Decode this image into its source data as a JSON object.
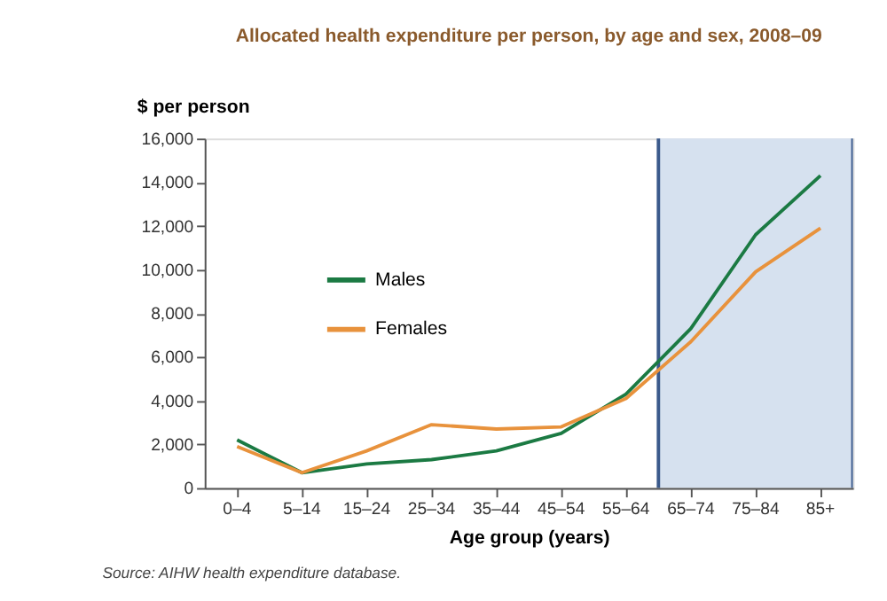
{
  "chart_data": {
    "type": "line",
    "title": "Allocated health expenditure per person, by age and sex, 2008–09",
    "xlabel": "Age group (years)",
    "ylabel": "$ per person",
    "categories": [
      "0–4",
      "5–14",
      "15–24",
      "25–34",
      "35–44",
      "45–54",
      "55–64",
      "65–74",
      "75–84",
      "85+"
    ],
    "series": [
      {
        "name": "Males",
        "color": "#1b7a43",
        "values": [
          2200,
          700,
          1100,
          1300,
          1700,
          2500,
          4300,
          7300,
          11600,
          14300
        ]
      },
      {
        "name": "Females",
        "color": "#e8923c",
        "values": [
          1900,
          700,
          1700,
          2900,
          2700,
          2800,
          4100,
          6700,
          9900,
          11900
        ]
      }
    ],
    "ylim": [
      0,
      16000
    ],
    "yticks": [
      0,
      {
        "value": 2000,
        "label": "2,000"
      },
      {
        "value": 4000,
        "label": "4,000"
      },
      {
        "value": 6000,
        "label": "6,000"
      },
      {
        "value": 8000,
        "label": "8,000"
      },
      {
        "value": 10000,
        "label": "10,000"
      },
      {
        "value": 12000,
        "label": "12,000"
      },
      {
        "value": 14000,
        "label": "14,000"
      },
      {
        "value": 16000,
        "label": "16,000"
      }
    ],
    "bands": [
      {
        "axis": "x",
        "from": "65–74",
        "to": "85+",
        "color": "#d6e1ef"
      }
    ],
    "grid": false,
    "legend": "top left",
    "marker": "none",
    "line_style": "solid",
    "annotations": [
      "Source: AIHW health expenditure database."
    ]
  }
}
